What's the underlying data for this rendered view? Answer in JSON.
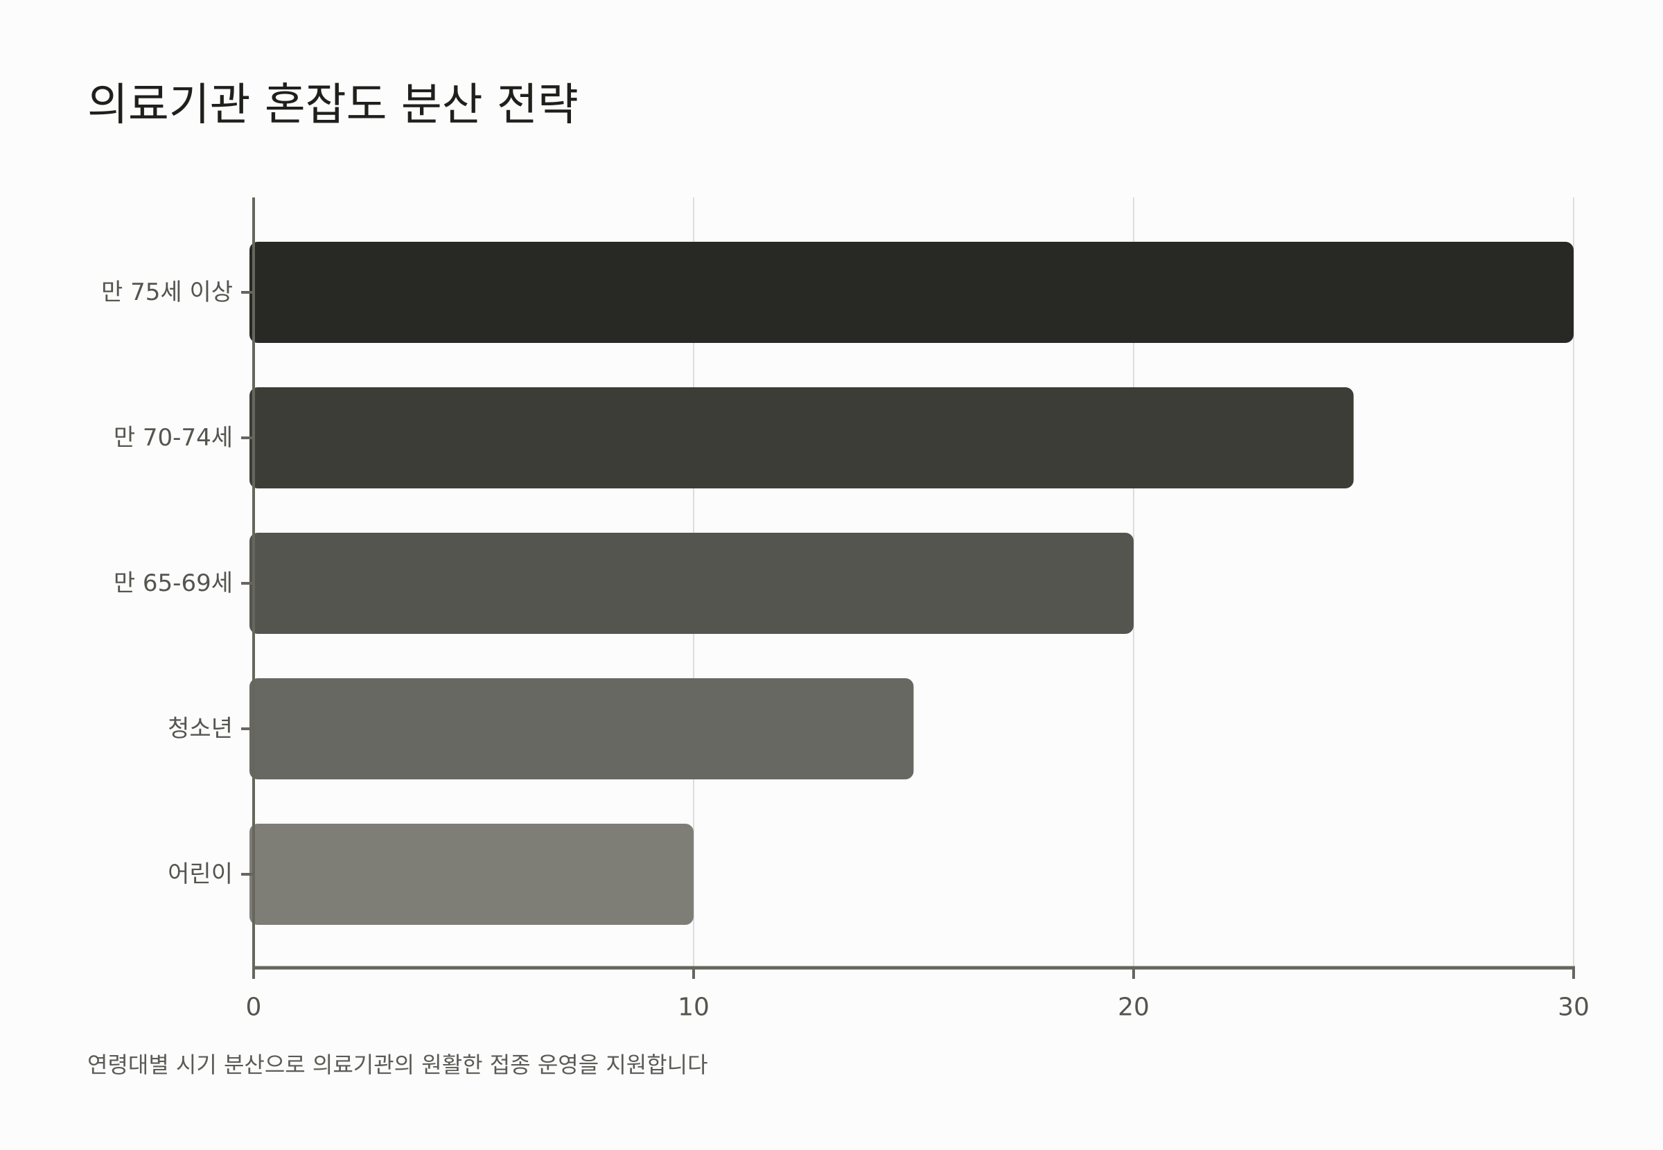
{
  "title": "의료기관 혼잡도 분산 전략",
  "note": "연령대별 시기 분산으로 의료기관의 원활한 접종 운영을 지원합니다",
  "chart_data": {
    "type": "bar",
    "orientation": "horizontal",
    "categories": [
      "만 75세 이상",
      "만 70-74세",
      "만 65-69세",
      "청소년",
      "어린이"
    ],
    "values": [
      30,
      25,
      20,
      15,
      10
    ],
    "colors": [
      "#282824",
      "#3d3d38",
      "#55554f",
      "#686862",
      "#7e7e77"
    ],
    "xlim": [
      0,
      30
    ],
    "xticks": [
      0,
      10,
      20,
      30
    ],
    "grid": true,
    "axis_color": "#66665f",
    "grid_color": "#dcdcdc"
  }
}
